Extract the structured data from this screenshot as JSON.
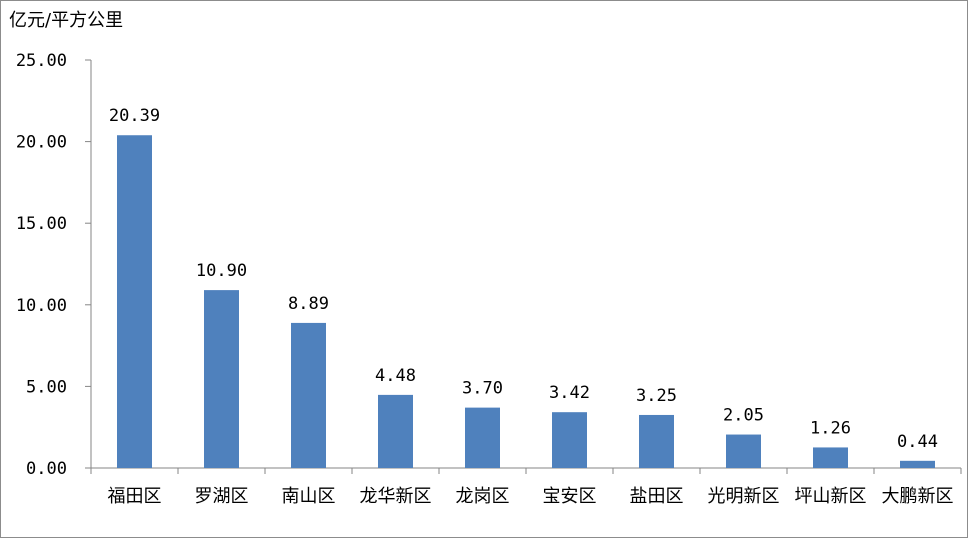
{
  "chart_data": {
    "type": "bar",
    "ylabel": "亿元/平方公里",
    "categories": [
      "福田区",
      "罗湖区",
      "南山区",
      "龙华新区",
      "龙岗区",
      "宝安区",
      "盐田区",
      "光明新区",
      "坪山新区",
      "大鹏新区"
    ],
    "values": [
      20.39,
      10.9,
      8.89,
      4.48,
      3.7,
      3.42,
      3.25,
      2.05,
      1.26,
      0.44
    ],
    "data_labels": [
      "20.39",
      "10.90",
      "8.89",
      "4.48",
      "3.70",
      "3.42",
      "3.25",
      "2.05",
      "1.26",
      "0.44"
    ],
    "yticks": [
      "0.00",
      "5.00",
      "10.00",
      "15.00",
      "20.00",
      "25.00"
    ],
    "ylim": [
      0,
      25
    ],
    "grid": false,
    "legend": "none",
    "bar_color": "#4f81bd",
    "axis_color": "#868686"
  }
}
